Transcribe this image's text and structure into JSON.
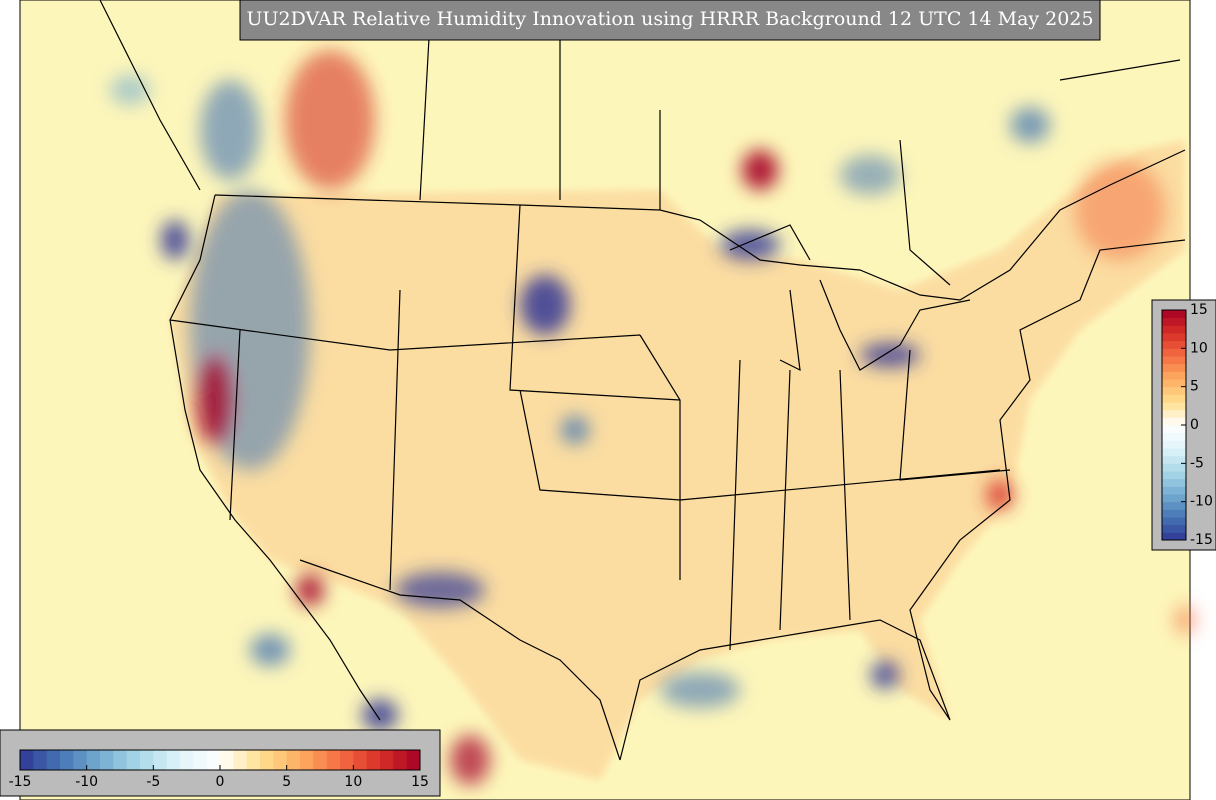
{
  "title": "UU2DVAR Relative Humidity Innovation using HRRR Background 12 UTC 14 May 2025",
  "colorbar": {
    "range": [
      -15,
      15
    ],
    "colors": [
      "#313695",
      "#4575b4",
      "#74add1",
      "#abd9e9",
      "#e0f3f8",
      "#ffffff",
      "#fee090",
      "#fdae61",
      "#f46d43",
      "#d73027",
      "#a50026"
    ],
    "right_ticks": [
      15,
      10,
      5,
      0,
      -5,
      -10,
      -15
    ],
    "bottom_ticks": [
      -15,
      -10,
      -5,
      0,
      5,
      10,
      15
    ]
  }
}
